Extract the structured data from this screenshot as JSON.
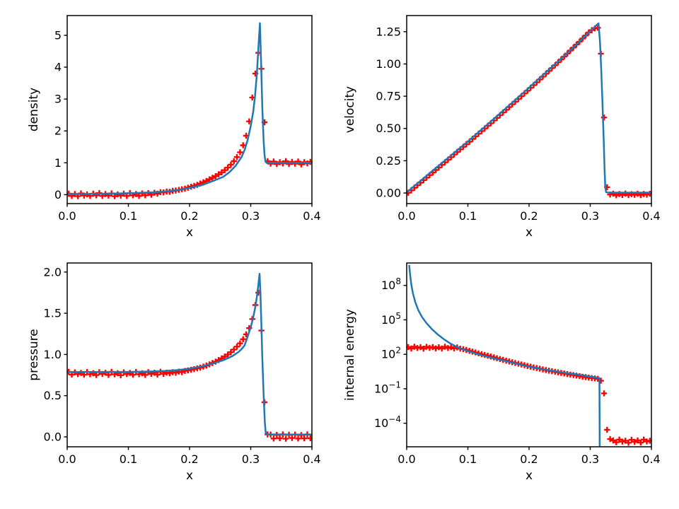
{
  "figure": {
    "background": "#ffffff",
    "line_color": "#1f77b4",
    "marker_color": "#ff0000",
    "marker_glyph": "+",
    "axis_color": "#000000"
  },
  "chart_data": [
    {
      "type": "line",
      "title": "",
      "xlabel": "x",
      "ylabel": "density",
      "yscale": "linear",
      "xlim": [
        0,
        0.4
      ],
      "ylim": [
        -0.28,
        5.62
      ],
      "grid": false,
      "legend": "none",
      "xticks": [
        0,
        0.1,
        0.2,
        0.3,
        0.4
      ],
      "xtick_labels": [
        "0.0",
        "0.1",
        "0.2",
        "0.3",
        "0.4"
      ],
      "yticks": [
        {
          "v": 0,
          "label": "0"
        },
        {
          "v": 1,
          "label": "1"
        },
        {
          "v": 2,
          "label": "2"
        },
        {
          "v": 3,
          "label": "3"
        },
        {
          "v": 4,
          "label": "4"
        },
        {
          "v": 5,
          "label": "5"
        }
      ],
      "line_points": [
        [
          0,
          0.018
        ],
        [
          0.04,
          0.024
        ],
        [
          0.08,
          0.035
        ],
        [
          0.11,
          0.05
        ],
        [
          0.14,
          0.075
        ],
        [
          0.16,
          0.1
        ],
        [
          0.18,
          0.145
        ],
        [
          0.2,
          0.21
        ],
        [
          0.22,
          0.3
        ],
        [
          0.24,
          0.44
        ],
        [
          0.255,
          0.56
        ],
        [
          0.265,
          0.7
        ],
        [
          0.275,
          0.9
        ],
        [
          0.285,
          1.18
        ],
        [
          0.29,
          1.4
        ],
        [
          0.295,
          1.72
        ],
        [
          0.3,
          2.15
        ],
        [
          0.304,
          2.6
        ],
        [
          0.307,
          3.1
        ],
        [
          0.31,
          3.8
        ],
        [
          0.3125,
          4.6
        ],
        [
          0.315,
          5.38
        ],
        [
          0.317,
          4.1
        ],
        [
          0.319,
          2.7
        ],
        [
          0.321,
          1.7
        ],
        [
          0.3225,
          1.25
        ],
        [
          0.324,
          1.04
        ],
        [
          0.326,
          1.0
        ],
        [
          0.4,
          1.0
        ]
      ],
      "markers": {
        "x_start": 0.0025,
        "x_step": 0.005,
        "values": [
          0.03,
          -0.04,
          0.02,
          -0.05,
          0.04,
          -0.03,
          0.01,
          -0.04,
          0.03,
          -0.02,
          0.05,
          -0.04,
          0.02,
          -0.03,
          0.04,
          -0.05,
          0.01,
          -0.03,
          0.03,
          -0.04,
          0.05,
          -0.02,
          0.02,
          -0.04,
          0.04,
          -0.02,
          0.05,
          0.0,
          0.06,
          0.03,
          0.08,
          0.07,
          0.1,
          0.09,
          0.12,
          0.13,
          0.15,
          0.17,
          0.19,
          0.22,
          0.25,
          0.28,
          0.31,
          0.35,
          0.39,
          0.43,
          0.48,
          0.53,
          0.58,
          0.64,
          0.7,
          0.77,
          0.85,
          0.94,
          1.05,
          1.18,
          1.33,
          1.55,
          1.85,
          2.3,
          3.05,
          3.8,
          4.45,
          3.95,
          2.27,
          1.05,
          0.97,
          1.04,
          0.96,
          1.02,
          0.98,
          1.05,
          0.96,
          1.03,
          0.97,
          1.04,
          0.95,
          1.02,
          0.98,
          1.03
        ]
      }
    },
    {
      "type": "line",
      "title": "",
      "xlabel": "x",
      "ylabel": "velocity",
      "yscale": "linear",
      "xlim": [
        0,
        0.4
      ],
      "ylim": [
        -0.082,
        1.375
      ],
      "grid": false,
      "legend": "none",
      "xticks": [
        0,
        0.1,
        0.2,
        0.3,
        0.4
      ],
      "xtick_labels": [
        "0.0",
        "0.1",
        "0.2",
        "0.3",
        "0.4"
      ],
      "yticks": [
        {
          "v": 0,
          "label": "0.00"
        },
        {
          "v": 0.25,
          "label": "0.25"
        },
        {
          "v": 0.5,
          "label": "0.50"
        },
        {
          "v": 0.75,
          "label": "0.75"
        },
        {
          "v": 1.0,
          "label": "1.00"
        },
        {
          "v": 1.25,
          "label": "1.25"
        }
      ],
      "line_points": [
        [
          0,
          0.005
        ],
        [
          0.05,
          0.203
        ],
        [
          0.1,
          0.399
        ],
        [
          0.15,
          0.605
        ],
        [
          0.2,
          0.816
        ],
        [
          0.24,
          0.988
        ],
        [
          0.27,
          1.118
        ],
        [
          0.29,
          1.207
        ],
        [
          0.3,
          1.253
        ],
        [
          0.31,
          1.3
        ],
        [
          0.3135,
          1.315
        ],
        [
          0.316,
          1.17
        ],
        [
          0.318,
          0.95
        ],
        [
          0.32,
          0.7
        ],
        [
          0.322,
          0.42
        ],
        [
          0.3235,
          0.18
        ],
        [
          0.3245,
          0.05
        ],
        [
          0.326,
          0.006
        ],
        [
          0.33,
          0.003
        ],
        [
          0.4,
          0.003
        ]
      ],
      "markers": {
        "x_start": 0.0025,
        "x_step": 0.005,
        "values": [
          0.002,
          0.021,
          0.041,
          0.061,
          0.08,
          0.1,
          0.119,
          0.139,
          0.159,
          0.178,
          0.198,
          0.218,
          0.238,
          0.258,
          0.278,
          0.298,
          0.318,
          0.338,
          0.358,
          0.378,
          0.398,
          0.419,
          0.439,
          0.459,
          0.48,
          0.5,
          0.521,
          0.541,
          0.562,
          0.582,
          0.603,
          0.624,
          0.645,
          0.666,
          0.687,
          0.708,
          0.729,
          0.75,
          0.772,
          0.793,
          0.815,
          0.836,
          0.858,
          0.88,
          0.902,
          0.924,
          0.946,
          0.968,
          0.99,
          1.013,
          1.035,
          1.058,
          1.081,
          1.104,
          1.127,
          1.15,
          1.173,
          1.197,
          1.22,
          1.244,
          1.262,
          1.275,
          1.28,
          1.08,
          0.585,
          0.045,
          -0.012,
          -0.005,
          -0.018,
          -0.008,
          -0.015,
          -0.004,
          -0.016,
          -0.009,
          -0.014,
          -0.006,
          -0.017,
          -0.008,
          -0.013,
          -0.006
        ]
      }
    },
    {
      "type": "line",
      "title": "",
      "xlabel": "x",
      "ylabel": "pressure",
      "yscale": "linear",
      "xlim": [
        0,
        0.4
      ],
      "ylim": [
        -0.12,
        2.11
      ],
      "grid": false,
      "legend": "none",
      "xticks": [
        0,
        0.1,
        0.2,
        0.3,
        0.4
      ],
      "xtick_labels": [
        "0.0",
        "0.1",
        "0.2",
        "0.3",
        "0.4"
      ],
      "yticks": [
        {
          "v": 0,
          "label": "0.0"
        },
        {
          "v": 0.5,
          "label": "0.5"
        },
        {
          "v": 1.0,
          "label": "1.0"
        },
        {
          "v": 1.5,
          "label": "1.5"
        },
        {
          "v": 2.0,
          "label": "2.0"
        }
      ],
      "line_points": [
        [
          0,
          0.787
        ],
        [
          0.08,
          0.787
        ],
        [
          0.11,
          0.789
        ],
        [
          0.14,
          0.794
        ],
        [
          0.16,
          0.8
        ],
        [
          0.18,
          0.811
        ],
        [
          0.2,
          0.828
        ],
        [
          0.22,
          0.856
        ],
        [
          0.24,
          0.895
        ],
        [
          0.255,
          0.93
        ],
        [
          0.27,
          0.98
        ],
        [
          0.28,
          1.03
        ],
        [
          0.285,
          1.065
        ],
        [
          0.29,
          1.11
        ],
        [
          0.295,
          1.22
        ],
        [
          0.3,
          1.33
        ],
        [
          0.304,
          1.45
        ],
        [
          0.307,
          1.56
        ],
        [
          0.31,
          1.7
        ],
        [
          0.312,
          1.82
        ],
        [
          0.3145,
          1.98
        ],
        [
          0.316,
          1.72
        ],
        [
          0.3175,
          1.35
        ],
        [
          0.319,
          0.95
        ],
        [
          0.321,
          0.52
        ],
        [
          0.323,
          0.18
        ],
        [
          0.3245,
          0.05
        ],
        [
          0.326,
          0.03
        ],
        [
          0.4,
          0.028
        ]
      ],
      "markers": {
        "x_start": 0.0025,
        "x_step": 0.005,
        "values": [
          0.79,
          0.756,
          0.783,
          0.762,
          0.776,
          0.754,
          0.788,
          0.76,
          0.772,
          0.75,
          0.786,
          0.764,
          0.778,
          0.752,
          0.79,
          0.758,
          0.772,
          0.748,
          0.784,
          0.762,
          0.776,
          0.754,
          0.788,
          0.76,
          0.772,
          0.752,
          0.786,
          0.764,
          0.778,
          0.756,
          0.79,
          0.765,
          0.78,
          0.772,
          0.785,
          0.778,
          0.792,
          0.786,
          0.8,
          0.807,
          0.814,
          0.822,
          0.831,
          0.841,
          0.853,
          0.866,
          0.88,
          0.896,
          0.913,
          0.932,
          0.952,
          0.975,
          1.0,
          1.028,
          1.06,
          1.095,
          1.135,
          1.185,
          1.245,
          1.32,
          1.43,
          1.6,
          1.75,
          1.29,
          0.42,
          0.03,
          0.028,
          -0.02,
          0.024,
          -0.016,
          0.03,
          -0.022,
          0.026,
          -0.014,
          0.028,
          -0.02,
          0.022,
          -0.018,
          0.03,
          -0.016
        ]
      }
    },
    {
      "type": "line",
      "title": "",
      "xlabel": "x",
      "ylabel": "internal energy",
      "yscale": "log",
      "xlim": [
        0,
        0.4
      ],
      "ylim_log10": [
        -6.05,
        9.95
      ],
      "grid": false,
      "legend": "none",
      "xticks": [
        0,
        0.1,
        0.2,
        0.3,
        0.4
      ],
      "xtick_labels": [
        "0.0",
        "0.1",
        "0.2",
        "0.3",
        "0.4"
      ],
      "yticks": [
        {
          "v": 100000000.0,
          "label": "10",
          "sup": "8"
        },
        {
          "v": 100000.0,
          "label": "10",
          "sup": "5"
        },
        {
          "v": 100.0,
          "label": "10",
          "sup": "2"
        },
        {
          "v": 0.1,
          "label": "10",
          "sup": "−1"
        },
        {
          "v": 0.0001,
          "label": "10",
          "sup": "−4"
        }
      ],
      "line_points": [
        [
          0.004,
          6000000000.0
        ],
        [
          0.0055,
          900000000.0
        ],
        [
          0.0075,
          120000000.0
        ],
        [
          0.01,
          22000000.0
        ],
        [
          0.014,
          3500000.0
        ],
        [
          0.019,
          700000.0
        ],
        [
          0.025,
          180000.0
        ],
        [
          0.032,
          55000.0
        ],
        [
          0.041,
          16000.0
        ],
        [
          0.051,
          5200
        ],
        [
          0.061,
          2000
        ],
        [
          0.071,
          900
        ],
        [
          0.081,
          460
        ],
        [
          0.091,
          285
        ],
        [
          0.101,
          185
        ],
        [
          0.12,
          90
        ],
        [
          0.14,
          48
        ],
        [
          0.16,
          27
        ],
        [
          0.18,
          15
        ],
        [
          0.2,
          8.5
        ],
        [
          0.22,
          5.3
        ],
        [
          0.24,
          3.6
        ],
        [
          0.26,
          2.4
        ],
        [
          0.28,
          1.7
        ],
        [
          0.3,
          1.15
        ],
        [
          0.31,
          0.95
        ],
        [
          0.315,
          0.85
        ],
        [
          0.3155,
          1e-06
        ]
      ],
      "markers": {
        "x_start": 0.0025,
        "x_step": 0.005,
        "values": [
          430,
          320,
          460,
          350,
          420,
          310,
          450,
          360,
          430,
          330,
          410,
          320,
          460,
          350,
          420,
          330,
          400,
          310,
          280,
          240,
          200,
          170,
          145,
          122,
          103,
          88,
          75,
          64,
          54,
          46,
          39,
          33,
          28,
          24,
          20.5,
          17.5,
          15,
          13,
          11.2,
          9.7,
          8.4,
          7.3,
          6.4,
          5.6,
          4.9,
          4.3,
          3.8,
          3.4,
          3.0,
          2.7,
          2.4,
          2.15,
          1.9,
          1.7,
          1.55,
          1.4,
          1.25,
          1.12,
          1.02,
          0.93,
          0.86,
          0.8,
          0.74,
          0.5,
          0.04,
          2.7e-05,
          4.2e-06,
          3.2e-06,
          2.2e-06,
          3.8e-06,
          2.5e-06,
          3e-06,
          2e-06,
          3.6e-06,
          2.4e-06,
          3.2e-06,
          2.1e-06,
          3.8e-06,
          2.6e-06,
          3e-06
        ]
      }
    }
  ]
}
